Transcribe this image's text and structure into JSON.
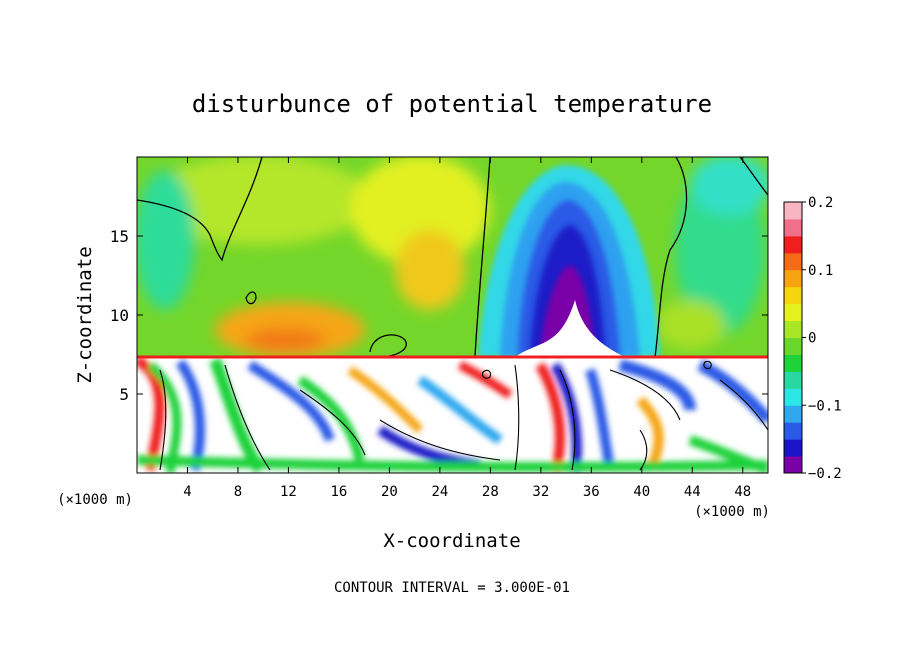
{
  "chart_data": {
    "type": "heatmap",
    "title": "disturbunce of potential temperature",
    "xlabel": "X-coordinate",
    "ylabel": "Z-coordinate",
    "x_unit_label": "(×1000 m)",
    "xlim": [
      0,
      50
    ],
    "ylim": [
      0,
      20
    ],
    "x_ticks": [
      4,
      8,
      12,
      16,
      20,
      24,
      28,
      32,
      36,
      40,
      44,
      48
    ],
    "y_ticks": [
      5,
      10,
      15
    ],
    "colorbar": {
      "range": [
        -0.2,
        0.2
      ],
      "tick_values": [
        -0.2,
        -0.1,
        0,
        0.1,
        0.2
      ],
      "tick_labels": [
        "−0.2",
        "−0.1",
        "0",
        "0.1",
        "0.2"
      ],
      "colors": [
        "#7a00a8",
        "#1a14c8",
        "#2a5ae6",
        "#2fa8f0",
        "#2ce6e6",
        "#28d8a0",
        "#1ed23a",
        "#6ad82a",
        "#a8e628",
        "#e6f01e",
        "#f5d60e",
        "#f7a412",
        "#f56a16",
        "#f01e1e",
        "#f0708c",
        "#f7b6c2"
      ]
    },
    "footer": "CONTOUR INTERVAL = 3.000E-01",
    "grid": false,
    "legend": "colorbar-right"
  }
}
